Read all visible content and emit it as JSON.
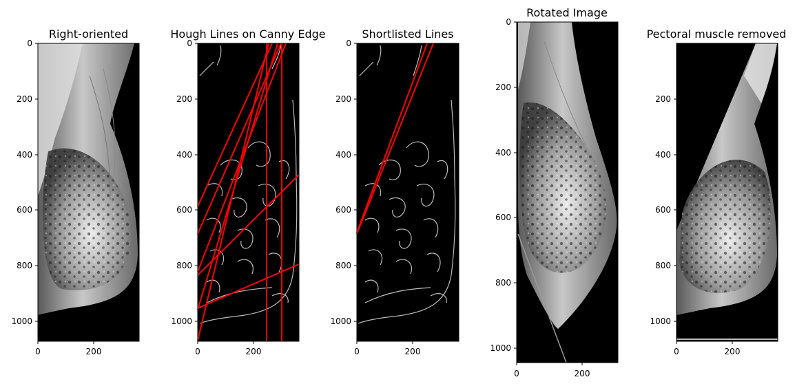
{
  "panels": [
    {
      "id": "right-oriented",
      "title": "Right-oriented",
      "kind": "mammogram",
      "x_ticks": [
        "0",
        "200"
      ],
      "y_ticks": [
        "0",
        "200",
        "400",
        "600",
        "800",
        "1000"
      ]
    },
    {
      "id": "hough-lines",
      "title": "Hough Lines on Canny Edge",
      "kind": "edges-with-lines",
      "line_color": "#ff0000",
      "x_ticks": [
        "0",
        "200"
      ],
      "y_ticks": [
        "0",
        "200",
        "400",
        "600",
        "800",
        "1000"
      ]
    },
    {
      "id": "shortlisted-lines",
      "title": "Shortlisted Lines",
      "kind": "edges-with-lines",
      "line_color": "#ff0000",
      "x_ticks": [
        "0",
        "200"
      ],
      "y_ticks": [
        "0",
        "200",
        "400",
        "600",
        "800",
        "1000"
      ]
    },
    {
      "id": "rotated-image",
      "title": "Rotated Image",
      "kind": "mammogram",
      "x_ticks": [
        "0",
        "200"
      ],
      "y_ticks": [
        "0",
        "200",
        "400",
        "600",
        "800",
        "1000"
      ]
    },
    {
      "id": "pectoral-removed",
      "title": "Pectoral muscle removed",
      "kind": "mammogram",
      "x_ticks": [
        "0",
        "200"
      ],
      "y_ticks": [
        "200",
        "400",
        "600",
        "800",
        "1000"
      ]
    }
  ]
}
